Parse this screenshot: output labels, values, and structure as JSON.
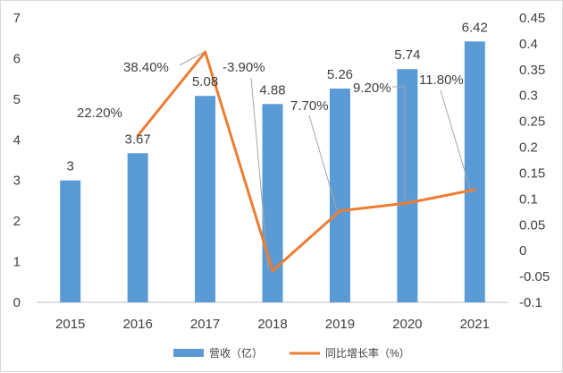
{
  "chart_data": {
    "type": "bar",
    "categories": [
      "2015",
      "2016",
      "2017",
      "2018",
      "2019",
      "2020",
      "2021"
    ],
    "series": [
      {
        "name": "营收（亿）",
        "type": "bar",
        "axis": "left",
        "values": [
          3,
          3.67,
          5.08,
          4.88,
          5.26,
          5.74,
          6.42
        ],
        "labels": [
          "3",
          "3.67",
          "5.08",
          "4.88",
          "5.26",
          "5.74",
          "6.42"
        ],
        "color": "#5b9bd5"
      },
      {
        "name": "同比增长率（%）",
        "type": "line",
        "axis": "right",
        "values": [
          null,
          0.222,
          0.384,
          -0.039,
          0.077,
          0.092,
          0.118
        ],
        "labels": [
          "",
          "22.20%",
          "38.40%",
          "-3.90%",
          "7.70%",
          "9.20%",
          "11.80%"
        ],
        "color": "#ed7d31"
      }
    ],
    "y_left": {
      "min": 0,
      "max": 7,
      "step": 1,
      "ticks": [
        "0",
        "1",
        "2",
        "3",
        "4",
        "5",
        "6",
        "7"
      ]
    },
    "y_right": {
      "min": -0.1,
      "max": 0.45,
      "step": 0.05,
      "ticks": [
        "-0.1",
        "-0.05",
        "0",
        "0.05",
        "0.1",
        "0.15",
        "0.2",
        "0.25",
        "0.3",
        "0.35",
        "0.4",
        "0.45"
      ]
    },
    "grid": false,
    "legend": "bottom"
  }
}
